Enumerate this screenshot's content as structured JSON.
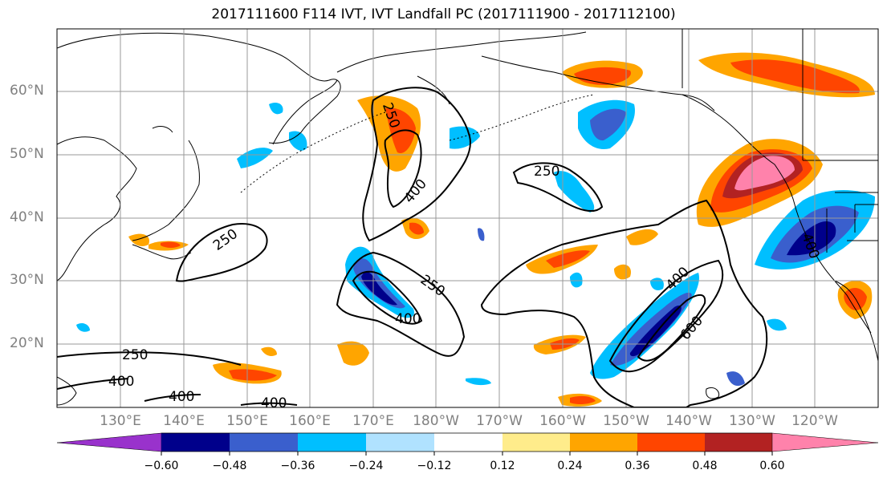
{
  "title": "2017111600 F114 IVT, IVT Landfall PC (2017111900 - 2017112100)",
  "lat_labels": [
    "60°N",
    "50°N",
    "40°N",
    "30°N",
    "20°N"
  ],
  "lon_labels": [
    "130°E",
    "140°E",
    "150°E",
    "160°E",
    "170°E",
    "180°W",
    "170°W",
    "160°W",
    "150°W",
    "140°W",
    "130°W",
    "120°W"
  ],
  "contour_labels": [
    "250",
    "250",
    "250",
    "250",
    "400",
    "400",
    "400",
    "400",
    "400",
    "400",
    "250",
    "400",
    "600"
  ],
  "colorbar": {
    "ticks": [
      "−0.60",
      "−0.48",
      "−0.36",
      "−0.24",
      "−0.12",
      "0.12",
      "0.24",
      "0.36",
      "0.48",
      "0.60"
    ],
    "colors": [
      "#9932cc",
      "#00008b",
      "#3a5fcd",
      "#00bfff",
      "#b0e2ff",
      "#ffffff",
      "#ffec8b",
      "#ffa500",
      "#ff4500",
      "#b22222",
      "#ff82ab"
    ]
  },
  "chart_data": {
    "type": "contour-map",
    "title": "2017111600 F114 IVT, IVT Landfall PC (2017111900 - 2017112100)",
    "lon_range": [
      "120°E",
      "110°W"
    ],
    "lat_range": [
      "10°N",
      "70°N"
    ],
    "contour_levels": [
      250,
      400,
      600
    ],
    "shading_levels": [
      -0.6,
      -0.48,
      -0.36,
      -0.24,
      -0.12,
      0.12,
      0.24,
      0.36,
      0.48,
      0.6
    ],
    "grid": true,
    "colorbar_placement": "bottom"
  }
}
